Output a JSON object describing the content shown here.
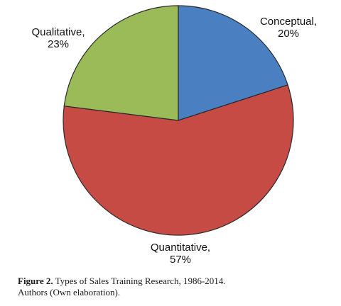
{
  "chart_data": {
    "type": "pie",
    "slices": [
      {
        "label": "Conceptual",
        "value": 20,
        "value_text": "20%",
        "color": "#4a7fc1"
      },
      {
        "label": "Quantitative",
        "value": 57,
        "value_text": "57%",
        "color": "#c64b45"
      },
      {
        "label": "Qualitative",
        "value": 23,
        "value_text": "23%",
        "color": "#9bbb59"
      }
    ],
    "start": "12 o'clock",
    "direction": "clockwise",
    "legend": "none",
    "data_labels": "outside slices"
  },
  "caption": {
    "figure": "Figure 2.",
    "title": "Types of Sales Training Research, 1986-2014.",
    "source": "Authors (Own elaboration)."
  }
}
